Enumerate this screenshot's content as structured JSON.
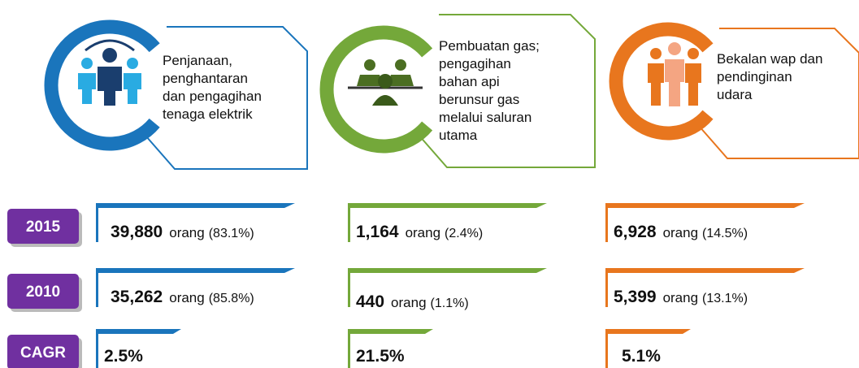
{
  "sectors": [
    {
      "name_lines": [
        "Penjanaan,",
        "penghantaran",
        "dan pengagihan",
        "tenaga elektrik"
      ],
      "color": "#1a75bc"
    },
    {
      "name_lines": [
        "Pembuatan gas;",
        "pengagihan",
        "bahan api",
        "berunsur gas",
        "melalui saluran",
        "utama"
      ],
      "color": "#74a83a"
    },
    {
      "name_lines": [
        "Bekalan wap dan",
        "pendinginan",
        "udara"
      ],
      "color": "#e8761e"
    }
  ],
  "unit": "orang",
  "rows": [
    {
      "label": "2015",
      "values": [
        {
          "count": "39,880",
          "share": "(83.1%)"
        },
        {
          "count": "1,164",
          "share": "(2.4%)"
        },
        {
          "count": "6,928",
          "share": "(14.5%)"
        }
      ]
    },
    {
      "label": "2010",
      "values": [
        {
          "count": "35,262",
          "share": "(85.8%)"
        },
        {
          "count": "440",
          "share": "(1.1%)"
        },
        {
          "count": "5,399",
          "share": "(13.1%)"
        }
      ]
    }
  ],
  "cagr": {
    "label": "CAGR",
    "values": [
      "2.5%",
      "21.5%",
      "5.1%"
    ]
  }
}
